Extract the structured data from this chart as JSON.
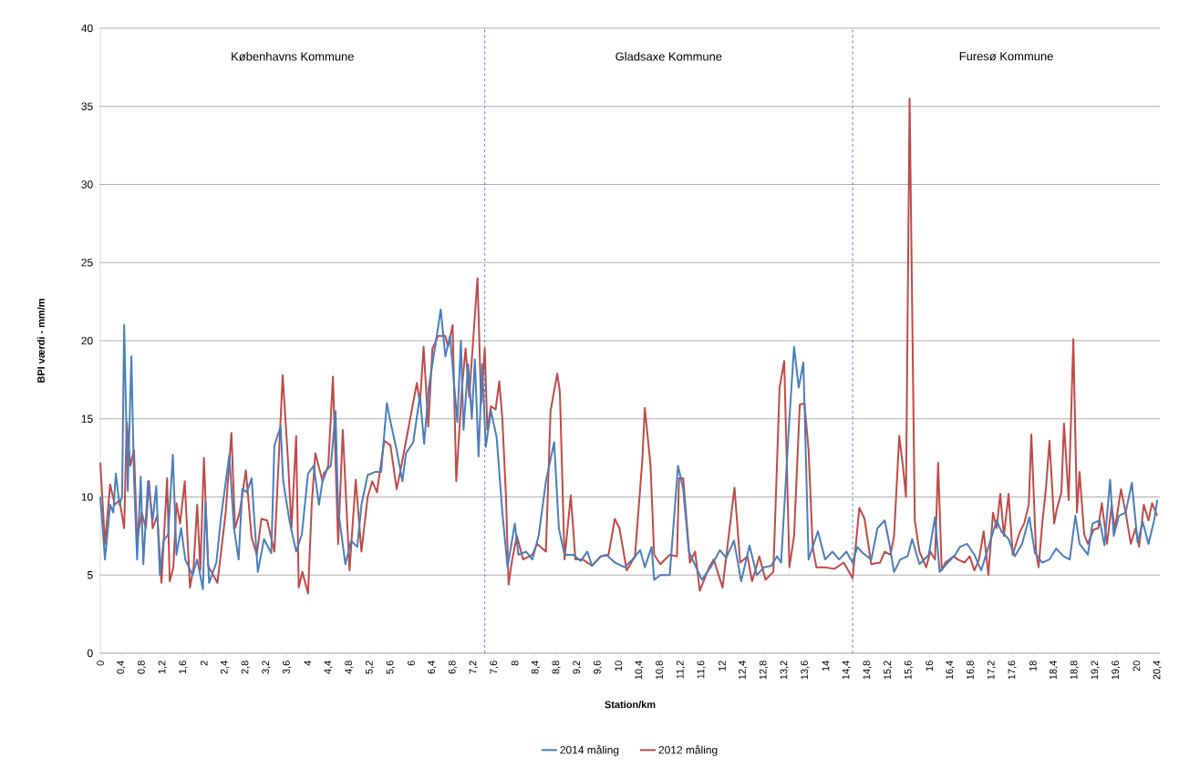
{
  "chart_data": {
    "type": "line",
    "xlabel": "Station/km",
    "ylabel": "BPI værdi - mm/m",
    "xlim": [
      0,
      20.45
    ],
    "ylim": [
      0,
      40
    ],
    "yticks": [
      0,
      5,
      10,
      15,
      20,
      25,
      30,
      35,
      40
    ],
    "xticks": [
      0,
      {
        "value": 0.4,
        "label": "0,4"
      },
      {
        "value": 0.8,
        "label": "0,8"
      },
      {
        "value": 1.2,
        "label": "1,2"
      },
      {
        "value": 1.6,
        "label": "1,6"
      },
      2,
      {
        "value": 2.4,
        "label": "2,4"
      },
      {
        "value": 2.8,
        "label": "2,8"
      },
      {
        "value": 3.2,
        "label": "3,2"
      },
      {
        "value": 3.6,
        "label": "3,6"
      },
      4,
      {
        "value": 4.4,
        "label": "4,4"
      },
      {
        "value": 4.8,
        "label": "4,8"
      },
      {
        "value": 5.2,
        "label": "5,2"
      },
      {
        "value": 5.6,
        "label": "5,6"
      },
      6,
      {
        "value": 6.4,
        "label": "6,4"
      },
      {
        "value": 6.8,
        "label": "6,8"
      },
      {
        "value": 7.2,
        "label": "7,2"
      },
      {
        "value": 7.6,
        "label": "7,6"
      },
      8,
      {
        "value": 8.4,
        "label": "8,4"
      },
      {
        "value": 8.8,
        "label": "8,8"
      },
      {
        "value": 9.2,
        "label": "9,2"
      },
      {
        "value": 9.6,
        "label": "9,6"
      },
      10,
      {
        "value": 10.4,
        "label": "10,4"
      },
      {
        "value": 10.8,
        "label": "10,8"
      },
      {
        "value": 11.2,
        "label": "11,2"
      },
      {
        "value": 11.6,
        "label": "11,6"
      },
      12,
      {
        "value": 12.4,
        "label": "12,4"
      },
      {
        "value": 12.8,
        "label": "12,8"
      },
      {
        "value": 13.2,
        "label": "13,2"
      },
      {
        "value": 13.6,
        "label": "13,6"
      },
      14,
      {
        "value": 14.4,
        "label": "14,4"
      },
      {
        "value": 14.8,
        "label": "14,8"
      },
      {
        "value": 15.2,
        "label": "15,2"
      },
      {
        "value": 15.6,
        "label": "15,6"
      },
      16,
      {
        "value": 16.4,
        "label": "16,4"
      },
      {
        "value": 16.8,
        "label": "16,8"
      },
      {
        "value": 17.2,
        "label": "17,2"
      },
      {
        "value": 17.6,
        "label": "17,6"
      },
      18,
      {
        "value": 18.4,
        "label": "18,4"
      },
      {
        "value": 18.8,
        "label": "18,8"
      },
      {
        "value": 19.2,
        "label": "19,2"
      },
      {
        "value": 19.6,
        "label": "19,6"
      },
      20,
      {
        "value": 20.4,
        "label": "20,4"
      }
    ],
    "grid": "y",
    "legend": "bottom",
    "marker": "none",
    "line_style": "solid",
    "ref_lines": [
      {
        "axis": "x",
        "value": 7.42,
        "color": "#4a7ebb",
        "line_style": "dashed"
      },
      {
        "axis": "x",
        "value": 14.52,
        "color": "#4a7ebb",
        "line_style": "dashed"
      }
    ],
    "annotations": [
      "Københavns Kommune",
      "Gladsaxe Kommune",
      "Furesø Kommune"
    ],
    "series": [
      {
        "name": "2014 måling",
        "color": "#4a7ebb",
        "x": [
          0,
          0.09,
          0.19,
          0.25,
          0.3,
          0.37,
          0.42,
          0.46,
          0.53,
          0.6,
          0.65,
          0.71,
          0.78,
          0.83,
          0.92,
          1.01,
          1.08,
          1.15,
          1.22,
          1.31,
          1.4,
          1.47,
          1.56,
          1.64,
          1.78,
          1.87,
          1.98,
          2.03,
          2.1,
          2.24,
          2.33,
          2.49,
          2.58,
          2.67,
          2.74,
          2.83,
          2.92,
          3.04,
          3.16,
          3.3,
          3.36,
          3.48,
          3.53,
          3.66,
          3.78,
          3.89,
          4.01,
          4.12,
          4.22,
          4.31,
          4.45,
          4.54,
          4.59,
          4.73,
          4.84,
          4.96,
          5.04,
          5.16,
          5.3,
          5.42,
          5.53,
          5.62,
          5.72,
          5.83,
          5.9,
          6.04,
          6.17,
          6.25,
          6.34,
          6.48,
          6.57,
          6.66,
          6.75,
          6.89,
          6.96,
          7.01,
          7.1,
          7.17,
          7.23,
          7.3,
          7.37,
          7.44,
          7.54,
          7.65,
          7.76,
          7.86,
          8.0,
          8.07,
          8.22,
          8.34,
          8.46,
          8.6,
          8.76,
          8.85,
          8.96,
          9.13,
          9.27,
          9.4,
          9.49,
          9.66,
          9.77,
          9.93,
          10.12,
          10.27,
          10.42,
          10.51,
          10.64,
          10.69,
          10.81,
          10.99,
          11.15,
          11.25,
          11.36,
          11.61,
          11.78,
          11.96,
          12.08,
          12.23,
          12.37,
          12.53,
          12.67,
          12.81,
          12.95,
          13.06,
          13.14,
          13.3,
          13.39,
          13.48,
          13.57,
          13.67,
          13.85,
          13.99,
          14.13,
          14.26,
          14.4,
          14.52,
          14.61,
          14.72,
          14.88,
          15.0,
          15.14,
          15.23,
          15.32,
          15.44,
          15.58,
          15.67,
          15.81,
          15.99,
          16.11,
          16.2,
          16.33,
          16.5,
          16.59,
          16.73,
          16.87,
          17.0,
          17.17,
          17.3,
          17.39,
          17.53,
          17.65,
          17.79,
          17.93,
          18.04,
          18.18,
          18.32,
          18.45,
          18.59,
          18.71,
          18.82,
          18.9,
          19.06,
          19.15,
          19.29,
          19.38,
          19.49,
          19.56,
          19.66,
          19.79,
          19.91,
          20.02,
          20.12,
          20.23,
          20.34,
          20.4
        ],
        "values": [
          10,
          6,
          9.5,
          9,
          11.5,
          9.5,
          10,
          21,
          10.4,
          19,
          11.3,
          6,
          11.3,
          5.7,
          11,
          8.5,
          10.7,
          5,
          7.2,
          7.6,
          12.7,
          6.3,
          8,
          6,
          5,
          6,
          4.1,
          9.7,
          4.5,
          5.8,
          8.7,
          12.7,
          8,
          6,
          10.5,
          10.3,
          11.2,
          5.2,
          7.3,
          6.4,
          13.3,
          14.5,
          11,
          8.3,
          6.5,
          7.6,
          11.5,
          12,
          9.5,
          11.5,
          12,
          15.5,
          9.2,
          5.7,
          7.2,
          6.8,
          9.5,
          11.4,
          11.6,
          11.6,
          16,
          14.5,
          13,
          11,
          12.8,
          13.5,
          16.5,
          13.4,
          17,
          20,
          22,
          19,
          20.3,
          14.8,
          20,
          14.3,
          18.5,
          15,
          18.8,
          12.6,
          18.5,
          13.2,
          15.5,
          13.8,
          9,
          5.5,
          8.3,
          6.3,
          6.5,
          6,
          7.5,
          11,
          13.5,
          8,
          6.3,
          6.3,
          5.9,
          6.5,
          5.6,
          6.2,
          6.3,
          5.8,
          5.5,
          6,
          6.6,
          5.5,
          6.8,
          4.7,
          5,
          5,
          12,
          10.5,
          6.5,
          4.7,
          5.5,
          6.6,
          6.1,
          7.2,
          4.6,
          6.9,
          5,
          5.5,
          5.6,
          6.2,
          5.8,
          15,
          19.6,
          17,
          18.6,
          6,
          7.8,
          6,
          6.5,
          6,
          6.5,
          5.8,
          6.8,
          6.4,
          6,
          8,
          8.5,
          7,
          5.2,
          6,
          6.2,
          7.3,
          5.7,
          6.3,
          8.7,
          5.2,
          5.7,
          6.3,
          6.8,
          7,
          6.3,
          5.3,
          7.1,
          8.5,
          7.8,
          7.3,
          6.2,
          7,
          8.7,
          6.4,
          5.8,
          6,
          6.7,
          6.2,
          6,
          8.8,
          7,
          6.3,
          8.3,
          8.5,
          6.9,
          11.1,
          7.5,
          8.8,
          9,
          10.9,
          7.1,
          8.4,
          7,
          8.5,
          9.8
        ]
      },
      {
        "name": "2012 måling",
        "color": "#be4b48",
        "x": [
          0,
          0.09,
          0.19,
          0.28,
          0.37,
          0.46,
          0.51,
          0.58,
          0.65,
          0.71,
          0.8,
          0.88,
          0.94,
          1.01,
          1.1,
          1.18,
          1.29,
          1.34,
          1.41,
          1.47,
          1.54,
          1.63,
          1.73,
          1.8,
          1.87,
          1.93,
          2.0,
          2.08,
          2.26,
          2.42,
          2.53,
          2.6,
          2.69,
          2.81,
          2.92,
          3.02,
          3.11,
          3.22,
          3.36,
          3.52,
          3.62,
          3.69,
          3.78,
          3.83,
          3.9,
          4.01,
          4.08,
          4.15,
          4.29,
          4.4,
          4.49,
          4.59,
          4.68,
          4.81,
          4.93,
          5.04,
          5.16,
          5.25,
          5.34,
          5.48,
          5.6,
          5.72,
          5.8,
          6.11,
          6.17,
          6.24,
          6.33,
          6.41,
          6.52,
          6.66,
          6.71,
          6.8,
          6.87,
          6.98,
          7.05,
          7.12,
          7.28,
          7.35,
          7.42,
          7.47,
          7.54,
          7.63,
          7.7,
          7.76,
          7.83,
          7.88,
          7.95,
          8.04,
          8.16,
          8.34,
          8.43,
          8.6,
          8.69,
          8.82,
          8.87,
          8.96,
          9.08,
          9.17,
          9.31,
          9.49,
          9.66,
          9.81,
          9.93,
          10.02,
          10.16,
          10.32,
          10.46,
          10.51,
          10.62,
          10.69,
          10.81,
          10.99,
          11.13,
          11.17,
          11.25,
          11.38,
          11.48,
          11.57,
          11.75,
          11.84,
          12.01,
          12.24,
          12.35,
          12.49,
          12.58,
          12.72,
          12.84,
          12.99,
          13.11,
          13.2,
          13.3,
          13.39,
          13.5,
          13.59,
          13.67,
          13.75,
          13.82,
          13.99,
          14.17,
          14.35,
          14.52,
          14.65,
          14.75,
          14.88,
          15.05,
          15.14,
          15.25,
          15.32,
          15.42,
          15.49,
          15.55,
          15.62,
          15.72,
          15.81,
          15.94,
          16.02,
          16.11,
          16.17,
          16.24,
          16.31,
          16.47,
          16.55,
          16.68,
          16.78,
          16.87,
          16.96,
          17.05,
          17.14,
          17.23,
          17.3,
          17.37,
          17.44,
          17.53,
          17.61,
          17.74,
          17.83,
          17.92,
          17.97,
          18.06,
          18.11,
          18.18,
          18.25,
          18.32,
          18.41,
          18.46,
          18.55,
          18.6,
          18.69,
          18.78,
          18.85,
          18.9,
          18.99,
          19.06,
          19.17,
          19.26,
          19.33,
          19.43,
          19.52,
          19.58,
          19.7,
          19.79,
          19.89,
          19.98,
          20.05,
          20.14,
          20.23,
          20.3,
          20.4
        ],
        "values": [
          12.2,
          7,
          10.8,
          9.5,
          9.8,
          8,
          14.8,
          12,
          13,
          7.2,
          9,
          8,
          11,
          8,
          8.8,
          4.5,
          11.2,
          4.6,
          5.5,
          9.6,
          8.3,
          11,
          4.2,
          5.5,
          9.5,
          5.3,
          12.5,
          5.6,
          4.5,
          9,
          14.1,
          8,
          9,
          11.7,
          7.4,
          6.3,
          8.6,
          8.5,
          6.5,
          17.8,
          12.5,
          8,
          13.9,
          4.2,
          5.2,
          3.8,
          9.5,
          12.8,
          11,
          12,
          17.7,
          7,
          14.3,
          5.3,
          11.1,
          6.5,
          10,
          11,
          10.3,
          13.6,
          13.3,
          10.5,
          11.8,
          17.3,
          16,
          19.6,
          14.5,
          19.5,
          20.3,
          20.3,
          19.6,
          21,
          11,
          17,
          19.5,
          16.4,
          24,
          16,
          19.5,
          14.3,
          15.8,
          15.6,
          17.4,
          15,
          10,
          4.4,
          6,
          7.5,
          6,
          6.3,
          7,
          6.5,
          15.5,
          17.9,
          16.7,
          6,
          10.1,
          6,
          6,
          5.6,
          6.2,
          6.3,
          8.6,
          8,
          5.3,
          6.2,
          12.3,
          15.7,
          12,
          6.3,
          5.7,
          6.3,
          6.2,
          11.2,
          11.2,
          5.8,
          6.5,
          4,
          5.5,
          6,
          4.2,
          10.6,
          5.8,
          6.2,
          4.6,
          6.2,
          4.7,
          5.2,
          17,
          18.7,
          5.5,
          7.5,
          15.9,
          16,
          13,
          6.8,
          5.5,
          5.5,
          5.4,
          5.8,
          4.8,
          9.3,
          8.6,
          5.7,
          5.8,
          6.5,
          6.3,
          7.5,
          13.9,
          12,
          10,
          35.5,
          8.5,
          6.5,
          5.5,
          6.5,
          6,
          12.2,
          5.3,
          5.8,
          6.2,
          6,
          5.8,
          6.2,
          5.3,
          6,
          7.8,
          5,
          9,
          8,
          10.2,
          7.5,
          10.2,
          6.3,
          7.7,
          8.3,
          9.5,
          14,
          6.5,
          5.5,
          8.3,
          10.5,
          13.6,
          8.3,
          9.2,
          10.3,
          14.7,
          9.8,
          20.1,
          9,
          11.6,
          7.6,
          7,
          7.9,
          8,
          9.6,
          7,
          9.5,
          7.9,
          10.5,
          9,
          7,
          8,
          6.8,
          9.5,
          8.5,
          9.6,
          8.8
        ]
      }
    ]
  }
}
